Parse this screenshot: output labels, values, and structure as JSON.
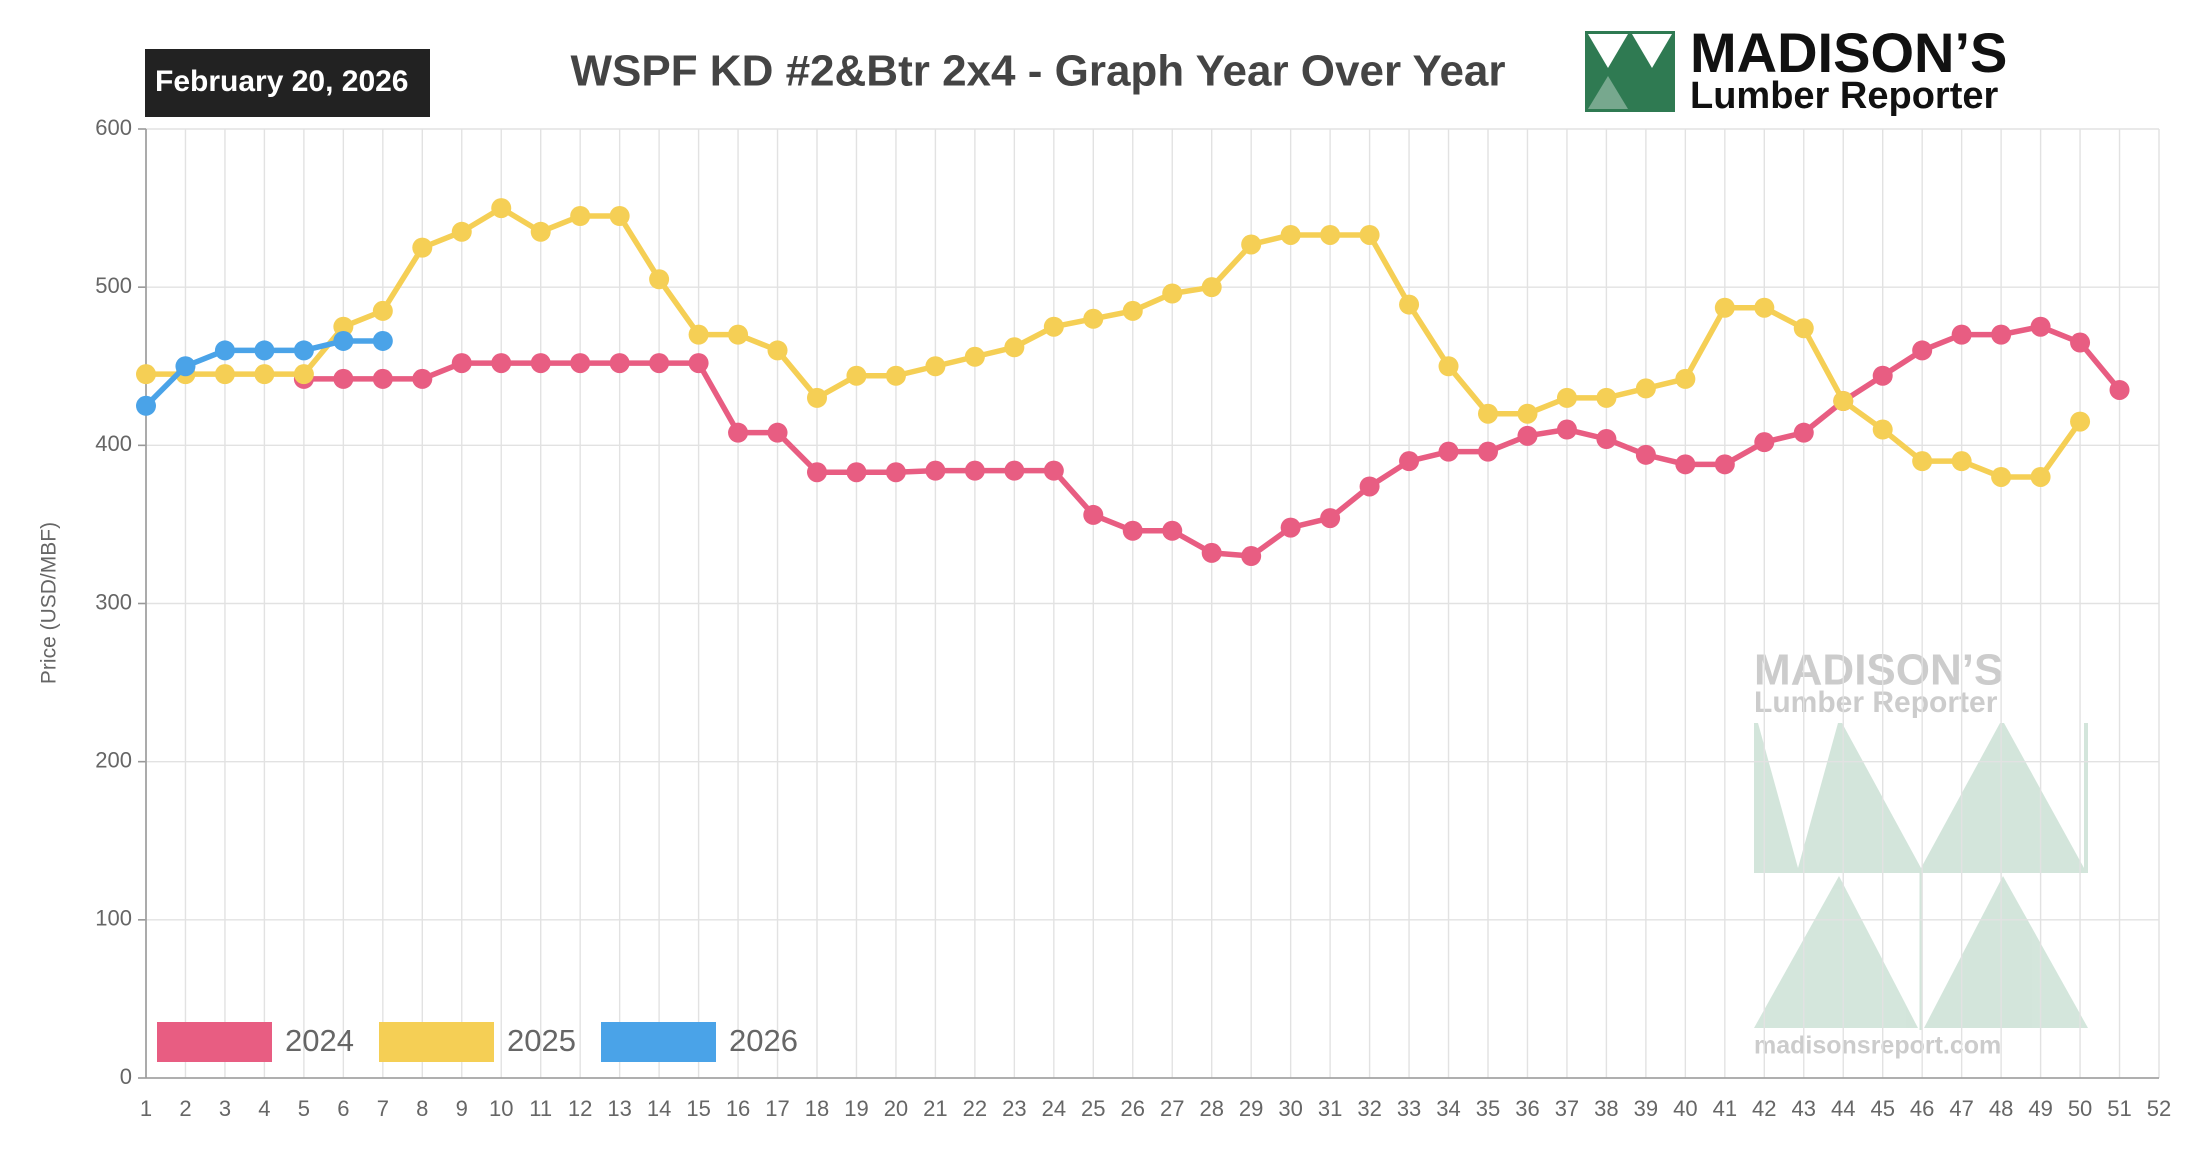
{
  "header": {
    "date": "February 20, 2026",
    "brand": "MADISON’S",
    "brand_sub": "Lumber Reporter"
  },
  "watermark": {
    "brand": "MADISON’S",
    "brand_sub": "Lumber Reporter",
    "url": "madisonsreport.com"
  },
  "chart_data": {
    "type": "line",
    "title": "WSPF KD #2&Btr 2x4 - Graph Year Over Year",
    "y_label": "Price (USD/MBF)",
    "categories": [
      "1",
      "2",
      "3",
      "4",
      "5",
      "6",
      "7",
      "8",
      "9",
      "10",
      "11",
      "12",
      "13",
      "14",
      "15",
      "16",
      "17",
      "18",
      "19",
      "20",
      "21",
      "22",
      "23",
      "24",
      "25",
      "26",
      "27",
      "28",
      "29",
      "30",
      "31",
      "32",
      "33",
      "34",
      "35",
      "36",
      "37",
      "38",
      "39",
      "40",
      "41",
      "42",
      "43",
      "44",
      "45",
      "46",
      "47",
      "48",
      "49",
      "50",
      "51",
      "52"
    ],
    "series": [
      {
        "name": "2024",
        "color": "#e85d82",
        "values": [
          null,
          null,
          null,
          null,
          442,
          442,
          442,
          442,
          452,
          452,
          452,
          452,
          452,
          452,
          452,
          408,
          408,
          383,
          383,
          383,
          384,
          384,
          384,
          384,
          356,
          346,
          346,
          332,
          330,
          348,
          354,
          374,
          390,
          396,
          396,
          406,
          410,
          404,
          394,
          388,
          388,
          402,
          408,
          428,
          444,
          460,
          470,
          470,
          475,
          465,
          435,
          null
        ]
      },
      {
        "name": "2025",
        "color": "#f5cf55",
        "values": [
          445,
          445,
          445,
          445,
          445,
          475,
          485,
          525,
          535,
          550,
          535,
          545,
          545,
          505,
          470,
          470,
          460,
          430,
          444,
          444,
          450,
          456,
          462,
          475,
          480,
          485,
          496,
          500,
          527,
          533,
          533,
          533,
          489,
          450,
          420,
          420,
          430,
          430,
          436,
          442,
          487,
          487,
          474,
          428,
          410,
          390,
          390,
          380,
          380,
          415,
          null,
          null
        ]
      },
      {
        "name": "2026",
        "color": "#4aa3e8",
        "values": [
          425,
          450,
          460,
          460,
          460,
          466,
          466,
          null,
          null,
          null,
          null,
          null,
          null,
          null,
          null,
          null,
          null,
          null,
          null,
          null,
          null,
          null,
          null,
          null,
          null,
          null,
          null,
          null,
          null,
          null,
          null,
          null,
          null,
          null,
          null,
          null,
          null,
          null,
          null,
          null,
          null,
          null,
          null,
          null,
          null,
          null,
          null,
          null,
          null,
          null,
          null,
          null
        ]
      }
    ],
    "ylim": [
      0,
      600
    ],
    "yticks": [
      0,
      100,
      200,
      300,
      400,
      500,
      600
    ],
    "grid": true,
    "legend": "bottom-left"
  }
}
